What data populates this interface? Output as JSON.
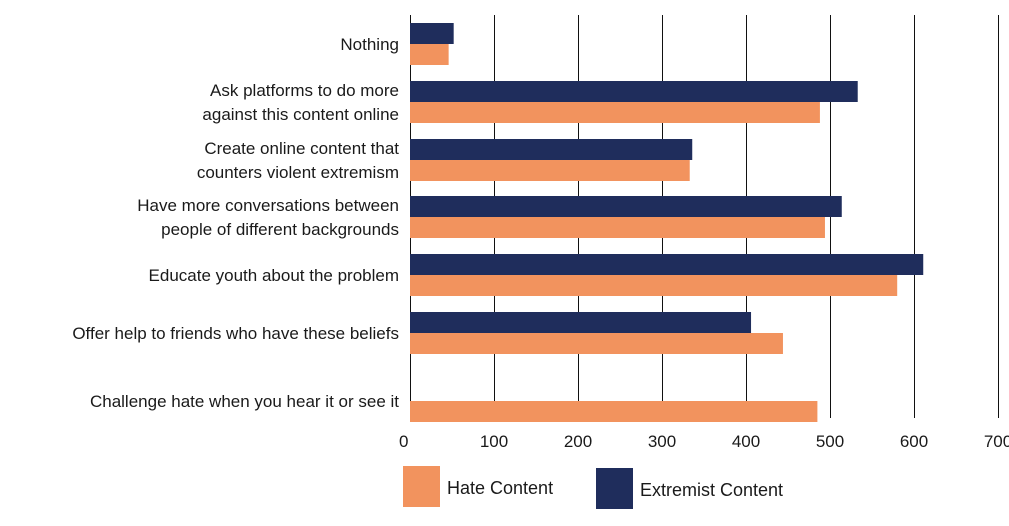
{
  "chart_data": {
    "type": "bar",
    "orientation": "horizontal",
    "categories": [
      [
        "Nothing"
      ],
      [
        "Ask platforms to do more",
        "against this content online"
      ],
      [
        "Create online content that",
        "counters violent extremism"
      ],
      [
        "Have more conversations between",
        "people of different backgrounds"
      ],
      [
        "Educate youth about the problem"
      ],
      [
        "Offer help to friends who have these beliefs"
      ],
      [
        "Challenge hate when you hear it or see it"
      ]
    ],
    "series": [
      {
        "name": "Extremist Content",
        "color": "#1f2d5c",
        "values": [
          52,
          533,
          336,
          514,
          611,
          406,
          0
        ]
      },
      {
        "name": "Hate Content",
        "color": "#f2935e",
        "values": [
          46,
          488,
          333,
          494,
          580,
          444,
          485
        ]
      }
    ],
    "xlim": [
      0,
      700
    ],
    "xticks": [
      0,
      100,
      200,
      300,
      400,
      500,
      600,
      700
    ],
    "grid": "vertical",
    "legend_position": "bottom"
  }
}
